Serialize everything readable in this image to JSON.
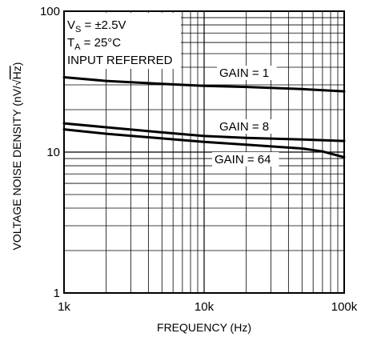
{
  "chart_data": {
    "type": "line",
    "xlabel": "FREQUENCY (Hz)",
    "ylabel_prefix": "VOLTAGE NOISE DENSITY (nV/",
    "ylabel_unit": "Hz",
    "ylabel_suffix": ")",
    "x_scale": "log",
    "y_scale": "log",
    "xlim": [
      1000,
      100000
    ],
    "ylim": [
      1,
      100
    ],
    "grid": true,
    "x_ticks": [
      {
        "value": 1000,
        "label": "1k"
      },
      {
        "value": 10000,
        "label": "10k"
      },
      {
        "value": 100000,
        "label": "100k"
      }
    ],
    "y_ticks": [
      {
        "value": 1,
        "label": "1"
      },
      {
        "value": 10,
        "label": "10"
      },
      {
        "value": 100,
        "label": "100"
      }
    ],
    "annotations": {
      "vs_main": "V",
      "vs_sub": "S",
      "vs_rest": " = ±2.5V",
      "ta_main": "T",
      "ta_sub": "A",
      "ta_rest": " = 25°C",
      "input_referred": "INPUT REFERRED"
    },
    "series": [
      {
        "name": "GAIN = 1",
        "x": [
          1000,
          2000,
          5000,
          10000,
          20000,
          50000,
          100000
        ],
        "y": [
          34,
          32,
          30.5,
          29.5,
          29,
          28,
          27
        ]
      },
      {
        "name": "GAIN = 8",
        "x": [
          1000,
          2000,
          5000,
          10000,
          20000,
          50000,
          100000
        ],
        "y": [
          16,
          15,
          13.8,
          13,
          12.6,
          12.3,
          12
        ]
      },
      {
        "name": "GAIN = 64",
        "x": [
          1000,
          2000,
          5000,
          10000,
          20000,
          50000,
          70000,
          100000
        ],
        "y": [
          14.5,
          13.5,
          12.5,
          11.8,
          11.3,
          10.6,
          10.1,
          9.2
        ]
      }
    ]
  }
}
